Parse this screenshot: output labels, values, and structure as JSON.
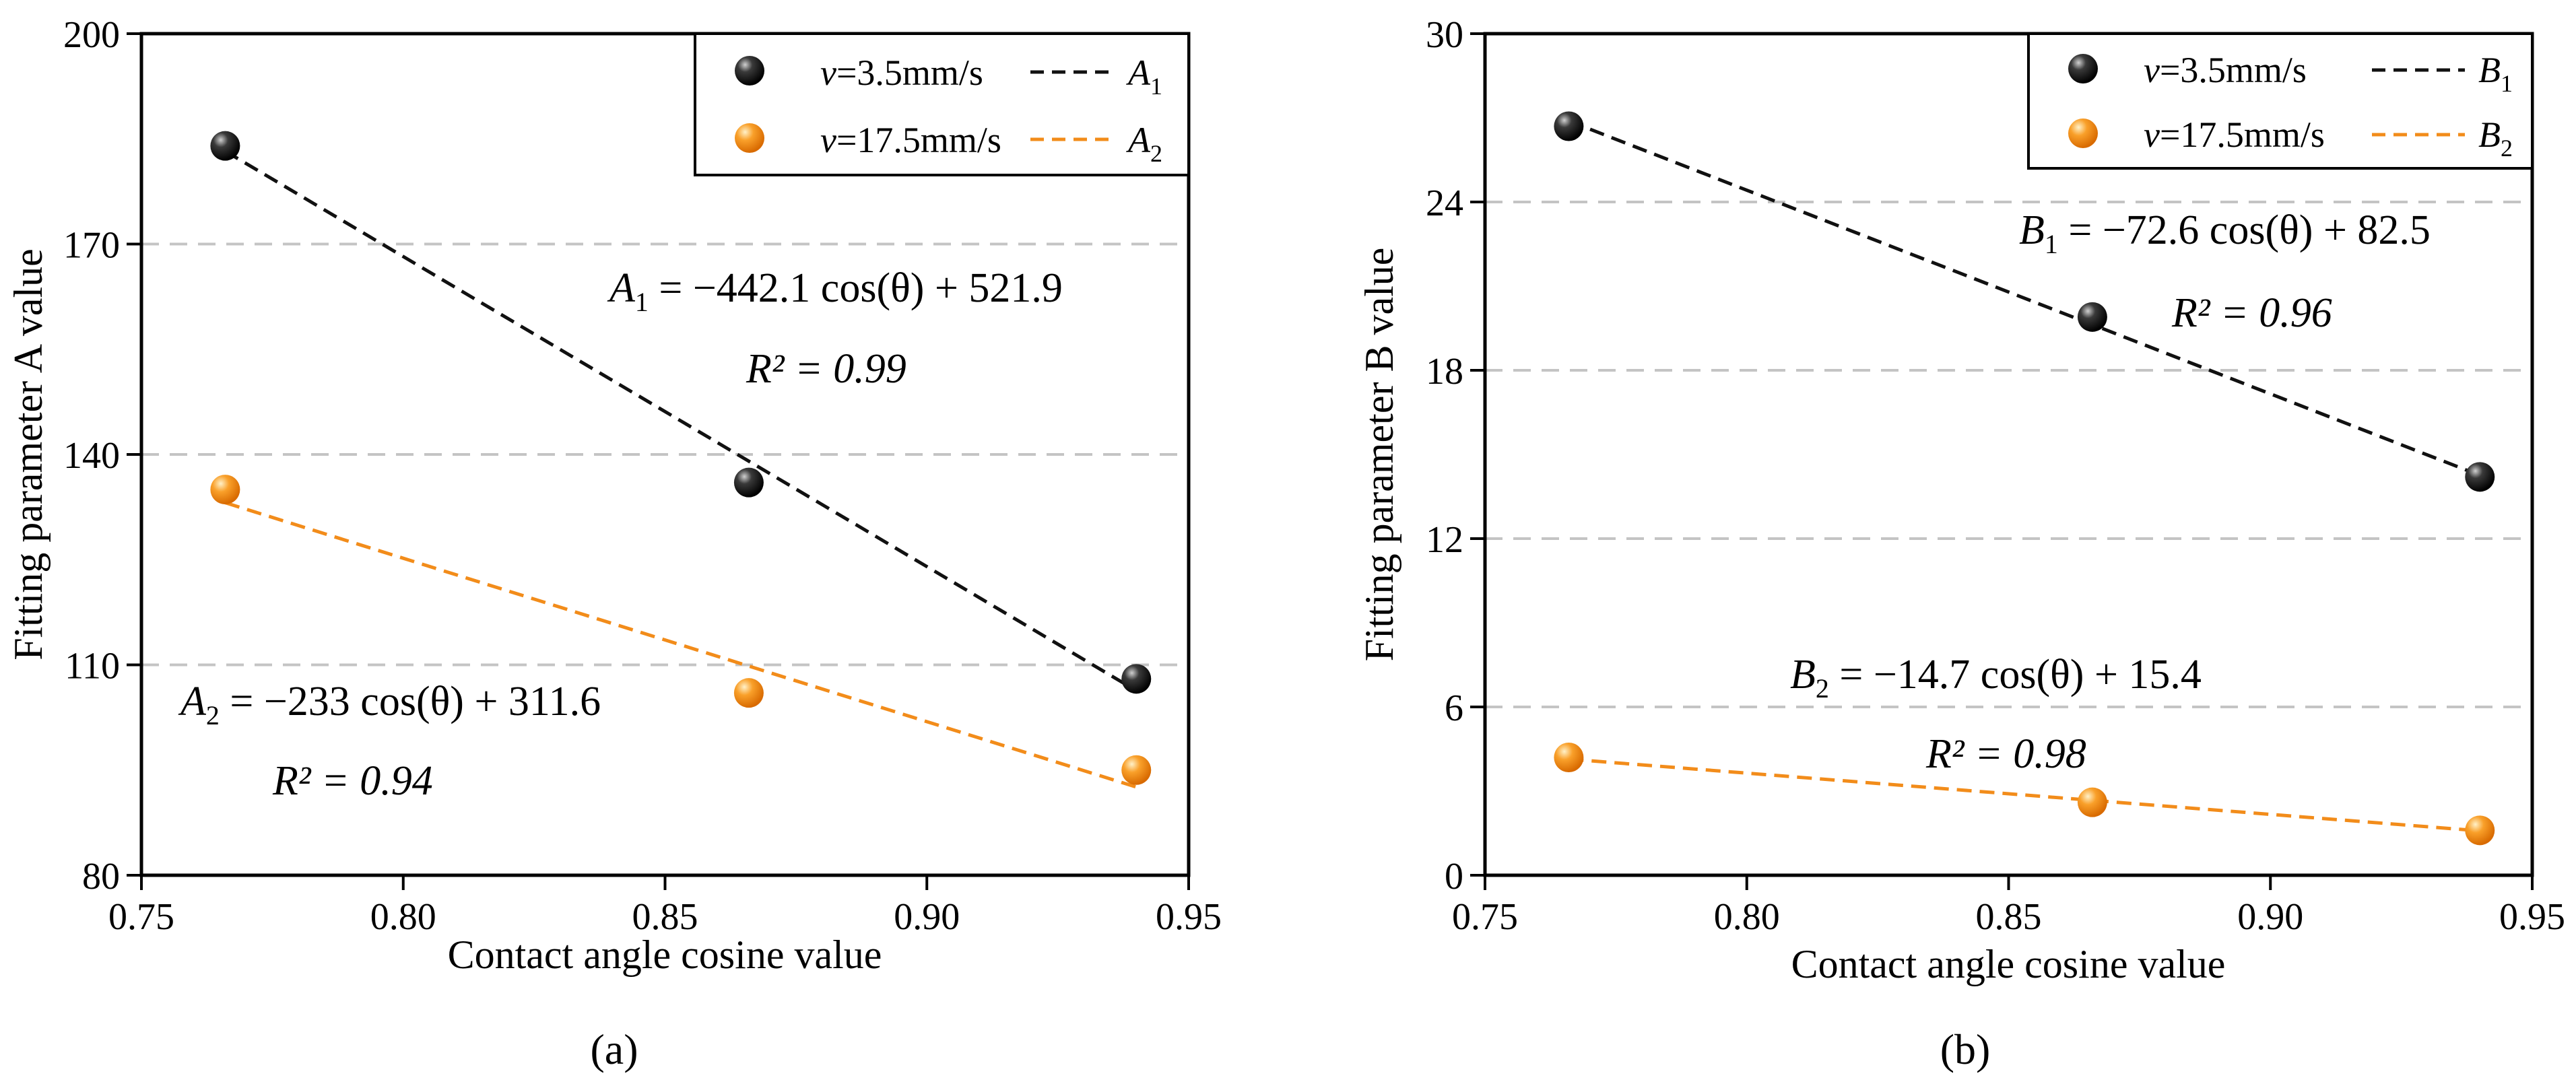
{
  "chart_data": [
    {
      "type": "scatter",
      "panel_label": "(a)",
      "xlabel": "Contact angle cosine value",
      "ylabel": "Fitting parameter A value",
      "xlim": [
        0.75,
        0.95
      ],
      "ylim": [
        80,
        200
      ],
      "xticks": [
        "0.75",
        "0.80",
        "0.85",
        "0.90",
        "0.95"
      ],
      "yticks": [
        "80",
        "110",
        "140",
        "170",
        "200"
      ],
      "grid_y_values": [
        110,
        140,
        170
      ],
      "series": [
        {
          "name": "v=3.5mm/s",
          "speed_symbol": "v",
          "speed_text": "=3.5mm/s",
          "fit_name": "A",
          "fit_subscript": "1",
          "color": "#111111",
          "x": [
            0.766,
            0.866,
            0.94
          ],
          "y": [
            184,
            136,
            108
          ],
          "fit": {
            "slope": -442.1,
            "intercept": 521.9
          }
        },
        {
          "name": "v=17.5mm/s",
          "speed_symbol": "v",
          "speed_text": "=17.5mm/s",
          "fit_name": "A",
          "fit_subscript": "2",
          "color": "#f28c1a",
          "x": [
            0.766,
            0.866,
            0.94
          ],
          "y": [
            135,
            106,
            95
          ],
          "fit": {
            "slope": -233,
            "intercept": 311.6
          }
        }
      ],
      "annotations": [
        {
          "var": "A",
          "sub": "1",
          "rest": " = −442.1 cos(θ) + 521.9",
          "r2": "R² = 0.99"
        },
        {
          "var": "A",
          "sub": "2",
          "rest": " = −233 cos(θ) + 311.6",
          "r2": "R² = 0.94"
        }
      ]
    },
    {
      "type": "scatter",
      "panel_label": "(b)",
      "xlabel": "Contact angle cosine value",
      "ylabel": "Fitting parameter B value",
      "xlim": [
        0.75,
        0.95
      ],
      "ylim": [
        0,
        30
      ],
      "xticks": [
        "0.75",
        "0.80",
        "0.85",
        "0.90",
        "0.95"
      ],
      "yticks": [
        "0",
        "6",
        "12",
        "18",
        "24",
        "30"
      ],
      "grid_y_values": [
        6,
        12,
        18,
        24
      ],
      "series": [
        {
          "name": "v=3.5mm/s",
          "speed_symbol": "v",
          "speed_text": "=3.5mm/s",
          "fit_name": "B",
          "fit_subscript": "1",
          "color": "#111111",
          "x": [
            0.766,
            0.866,
            0.94
          ],
          "y": [
            26.7,
            19.9,
            14.2
          ],
          "fit": {
            "slope": -72.6,
            "intercept": 82.5
          }
        },
        {
          "name": "v=17.5mm/s",
          "speed_symbol": "v",
          "speed_text": "=17.5mm/s",
          "fit_name": "B",
          "fit_subscript": "2",
          "color": "#f28c1a",
          "x": [
            0.766,
            0.866,
            0.94
          ],
          "y": [
            4.2,
            2.6,
            1.6
          ],
          "fit": {
            "slope": -14.7,
            "intercept": 15.4
          }
        }
      ],
      "annotations": [
        {
          "var": "B",
          "sub": "1",
          "rest": " = −72.6 cos(θ) + 82.5",
          "r2": "R² = 0.96"
        },
        {
          "var": "B",
          "sub": "2",
          "rest": " = −14.7 cos(θ) + 15.4",
          "r2": "R² = 0.98"
        }
      ]
    }
  ]
}
